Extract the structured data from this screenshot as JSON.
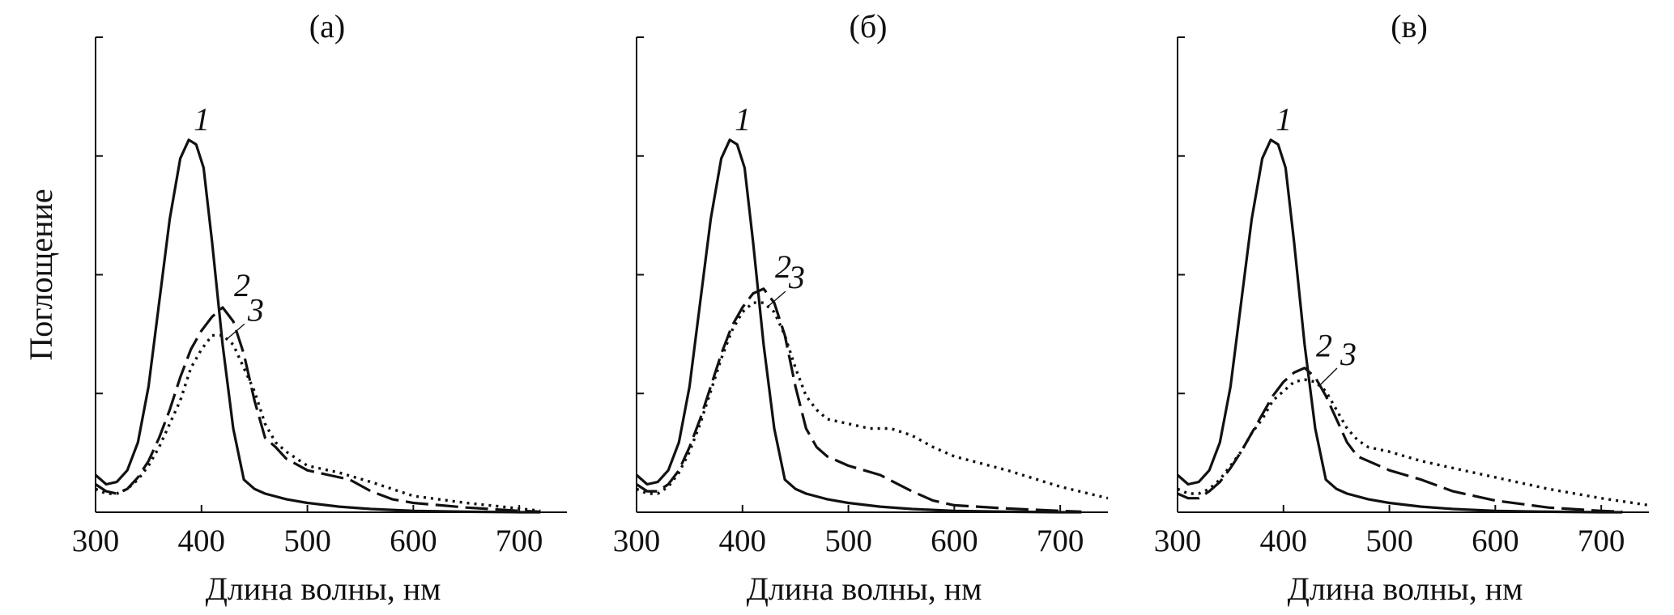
{
  "chart_data": [
    {
      "type": "line",
      "title": "(а)",
      "xlabel": "Длина волны, нм",
      "ylabel": "Поглощение",
      "xlim": [
        300,
        745
      ],
      "ylim": [
        0,
        1.0
      ],
      "xticks": [
        300,
        400,
        500,
        600,
        700
      ],
      "xtick_labels": [
        "300",
        "400",
        "500",
        "600",
        "700"
      ],
      "yticks": [
        0.25,
        0.5,
        0.75,
        1.0
      ],
      "grid": false,
      "series": [
        {
          "name": "1",
          "style": "solid",
          "x": [
            300,
            310,
            320,
            330,
            340,
            350,
            360,
            370,
            380,
            388,
            395,
            402,
            410,
            420,
            430,
            440,
            450,
            460,
            480,
            500,
            530,
            560,
            600,
            650,
            700,
            720
          ],
          "y": [
            0.08,
            0.06,
            0.065,
            0.09,
            0.15,
            0.27,
            0.45,
            0.63,
            0.76,
            0.8,
            0.79,
            0.74,
            0.58,
            0.36,
            0.18,
            0.07,
            0.05,
            0.04,
            0.028,
            0.02,
            0.012,
            0.007,
            0.003,
            0.001,
            0.0,
            0.0
          ]
        },
        {
          "name": "2",
          "style": "dashed",
          "x": [
            300,
            310,
            320,
            330,
            340,
            350,
            360,
            370,
            380,
            390,
            400,
            410,
            420,
            430,
            440,
            450,
            460,
            470,
            480,
            500,
            520,
            540,
            560,
            580,
            600,
            650,
            700,
            720
          ],
          "y": [
            0.06,
            0.045,
            0.04,
            0.05,
            0.075,
            0.11,
            0.16,
            0.22,
            0.29,
            0.35,
            0.39,
            0.42,
            0.44,
            0.41,
            0.34,
            0.24,
            0.16,
            0.14,
            0.115,
            0.09,
            0.08,
            0.07,
            0.045,
            0.028,
            0.02,
            0.01,
            0.003,
            0.001
          ]
        },
        {
          "name": "3",
          "style": "dotted",
          "x": [
            300,
            310,
            320,
            330,
            340,
            350,
            360,
            370,
            380,
            390,
            400,
            410,
            420,
            430,
            440,
            450,
            460,
            470,
            480,
            500,
            530,
            560,
            600,
            650,
            700,
            720
          ],
          "y": [
            0.05,
            0.04,
            0.04,
            0.05,
            0.07,
            0.1,
            0.14,
            0.19,
            0.24,
            0.31,
            0.35,
            0.38,
            0.38,
            0.36,
            0.31,
            0.26,
            0.19,
            0.15,
            0.13,
            0.1,
            0.085,
            0.065,
            0.035,
            0.02,
            0.008,
            0.003
          ]
        }
      ],
      "curve_labels": [
        "1",
        "2",
        "3"
      ]
    },
    {
      "type": "line",
      "title": "(б)",
      "xlabel": "Длина волны, нм",
      "ylabel": "",
      "xlim": [
        300,
        745
      ],
      "ylim": [
        0,
        1.0
      ],
      "xticks": [
        300,
        400,
        500,
        600,
        700
      ],
      "xtick_labels": [
        "300",
        "400",
        "500",
        "600",
        "700"
      ],
      "yticks": [
        0.25,
        0.5,
        0.75,
        1.0
      ],
      "grid": false,
      "series": [
        {
          "name": "1",
          "style": "solid",
          "x": [
            300,
            310,
            320,
            330,
            340,
            350,
            360,
            370,
            380,
            388,
            395,
            402,
            410,
            420,
            430,
            440,
            450,
            460,
            480,
            500,
            530,
            560,
            600,
            650,
            700,
            720
          ],
          "y": [
            0.08,
            0.06,
            0.065,
            0.09,
            0.15,
            0.27,
            0.45,
            0.63,
            0.76,
            0.8,
            0.79,
            0.74,
            0.58,
            0.36,
            0.18,
            0.07,
            0.05,
            0.04,
            0.028,
            0.02,
            0.012,
            0.007,
            0.003,
            0.001,
            0.0,
            0.0
          ]
        },
        {
          "name": "2",
          "style": "dashed",
          "x": [
            300,
            310,
            320,
            330,
            340,
            350,
            360,
            370,
            380,
            390,
            400,
            410,
            420,
            430,
            440,
            450,
            460,
            470,
            480,
            500,
            530,
            560,
            580,
            600,
            650,
            700,
            720
          ],
          "y": [
            0.06,
            0.045,
            0.045,
            0.06,
            0.09,
            0.14,
            0.2,
            0.27,
            0.34,
            0.4,
            0.44,
            0.47,
            0.48,
            0.45,
            0.38,
            0.27,
            0.18,
            0.14,
            0.12,
            0.1,
            0.08,
            0.045,
            0.025,
            0.015,
            0.008,
            0.003,
            0.001
          ]
        },
        {
          "name": "3",
          "style": "dotted",
          "x": [
            300,
            310,
            320,
            330,
            340,
            350,
            360,
            370,
            380,
            390,
            400,
            410,
            420,
            430,
            440,
            450,
            460,
            470,
            480,
            500,
            520,
            540,
            560,
            580,
            600,
            650,
            700,
            745
          ],
          "y": [
            0.05,
            0.04,
            0.04,
            0.055,
            0.085,
            0.13,
            0.19,
            0.26,
            0.33,
            0.39,
            0.43,
            0.45,
            0.45,
            0.43,
            0.38,
            0.31,
            0.25,
            0.22,
            0.2,
            0.19,
            0.18,
            0.18,
            0.165,
            0.14,
            0.12,
            0.09,
            0.055,
            0.03
          ]
        }
      ],
      "curve_labels": [
        "1",
        "2",
        "3"
      ]
    },
    {
      "type": "line",
      "title": "(в)",
      "xlabel": "Длина волны, нм",
      "ylabel": "",
      "xlim": [
        300,
        745
      ],
      "ylim": [
        0,
        1.0
      ],
      "xticks": [
        300,
        400,
        500,
        600,
        700
      ],
      "xtick_labels": [
        "300",
        "400",
        "500",
        "600",
        "700"
      ],
      "yticks": [
        0.25,
        0.5,
        0.75,
        1.0
      ],
      "grid": false,
      "series": [
        {
          "name": "1",
          "style": "solid",
          "x": [
            300,
            310,
            320,
            330,
            340,
            350,
            360,
            370,
            380,
            388,
            395,
            402,
            410,
            420,
            430,
            440,
            450,
            460,
            480,
            500,
            530,
            560,
            600,
            650,
            700,
            720
          ],
          "y": [
            0.08,
            0.06,
            0.065,
            0.09,
            0.15,
            0.27,
            0.45,
            0.63,
            0.76,
            0.8,
            0.79,
            0.74,
            0.58,
            0.36,
            0.18,
            0.07,
            0.05,
            0.04,
            0.028,
            0.02,
            0.012,
            0.007,
            0.003,
            0.001,
            0.0,
            0.0
          ]
        },
        {
          "name": "2",
          "style": "dashed",
          "x": [
            300,
            310,
            320,
            330,
            340,
            350,
            360,
            370,
            380,
            390,
            400,
            410,
            420,
            430,
            440,
            450,
            460,
            470,
            480,
            500,
            530,
            560,
            600,
            650,
            700,
            720
          ],
          "y": [
            0.04,
            0.03,
            0.03,
            0.045,
            0.065,
            0.095,
            0.13,
            0.17,
            0.21,
            0.25,
            0.28,
            0.3,
            0.31,
            0.29,
            0.25,
            0.2,
            0.15,
            0.12,
            0.11,
            0.09,
            0.07,
            0.045,
            0.025,
            0.01,
            0.003,
            0.001
          ]
        },
        {
          "name": "3",
          "style": "dotted",
          "x": [
            300,
            310,
            320,
            330,
            340,
            350,
            360,
            370,
            380,
            390,
            400,
            410,
            420,
            430,
            440,
            450,
            460,
            470,
            480,
            500,
            530,
            560,
            600,
            650,
            700,
            745
          ],
          "y": [
            0.05,
            0.04,
            0.04,
            0.05,
            0.07,
            0.1,
            0.13,
            0.17,
            0.2,
            0.24,
            0.26,
            0.28,
            0.285,
            0.28,
            0.26,
            0.22,
            0.18,
            0.155,
            0.14,
            0.13,
            0.11,
            0.095,
            0.075,
            0.05,
            0.03,
            0.015
          ]
        }
      ],
      "curve_labels": [
        "1",
        "2",
        "3"
      ]
    }
  ]
}
